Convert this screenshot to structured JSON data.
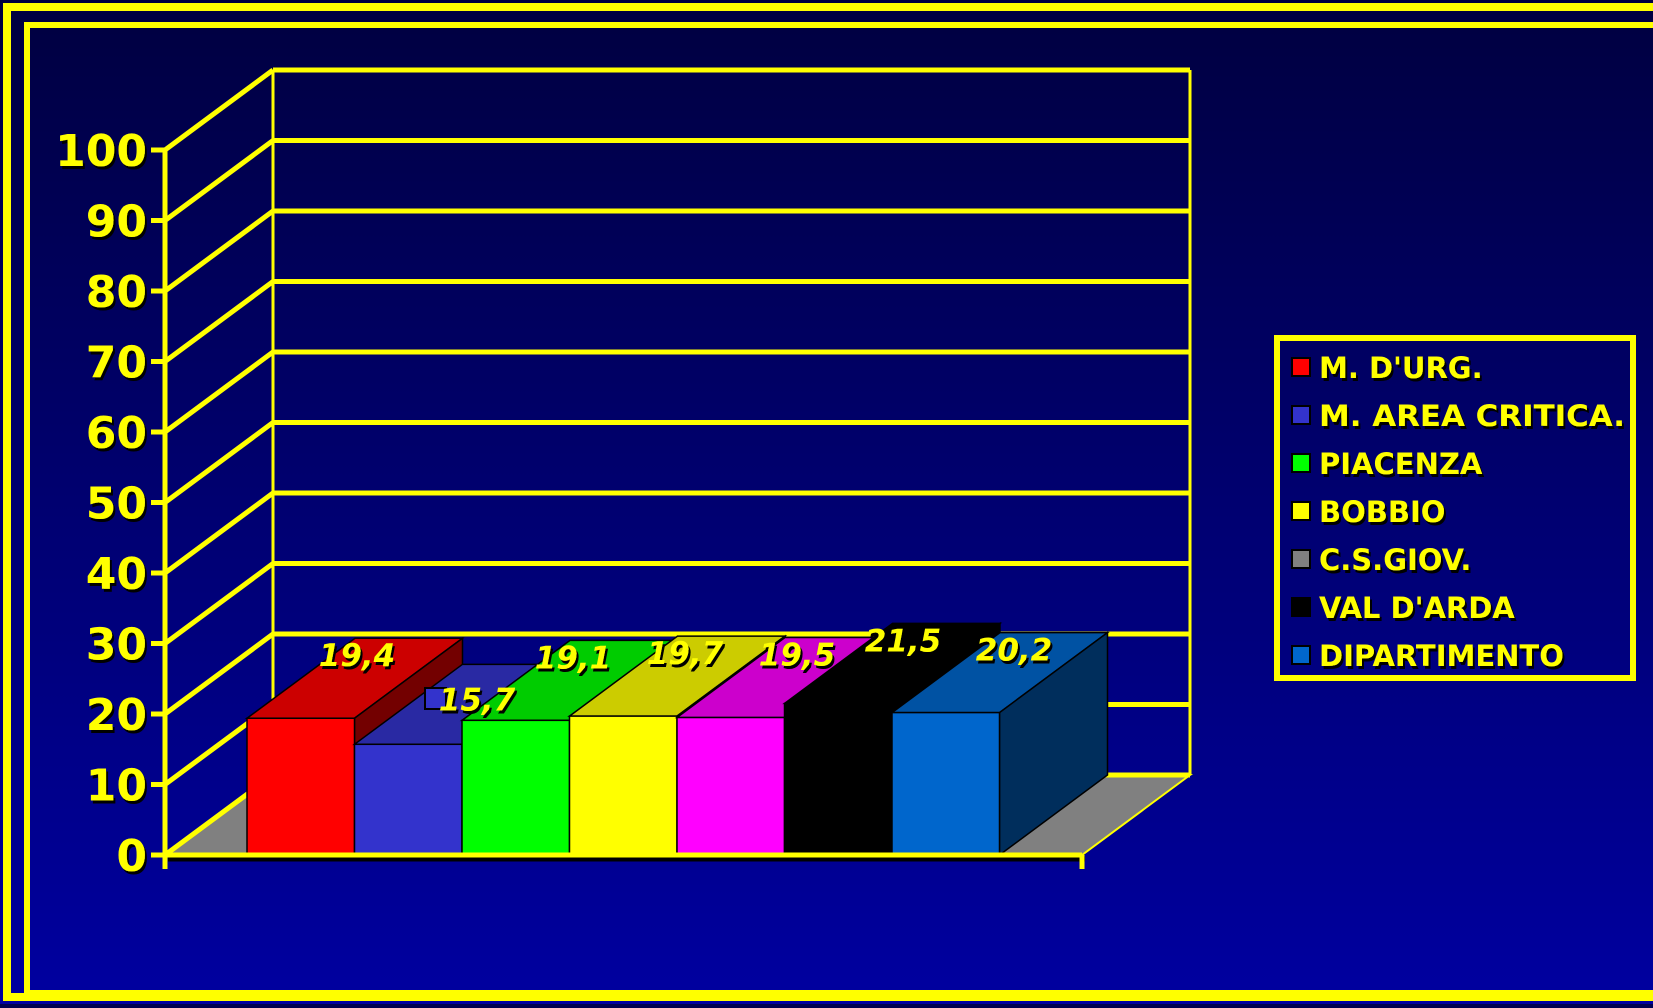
{
  "chart_data": {
    "type": "bar",
    "title": "",
    "xlabel": "",
    "ylabel": "",
    "ylim": [
      0,
      100
    ],
    "yticks": [
      "0",
      "10",
      "20",
      "30",
      "40",
      "50",
      "60",
      "70",
      "80",
      "90",
      "100"
    ],
    "grid": true,
    "three_d": true,
    "legend_position": "right",
    "series": [
      {
        "name": "M. D'URG.",
        "value": 19.4,
        "label": "19,4",
        "color": "#ff0000"
      },
      {
        "name": "M. AREA CRITICA.",
        "value": 15.7,
        "label": "15,7",
        "color": "#3333cc"
      },
      {
        "name": "PIACENZA",
        "value": 19.1,
        "label": "19,1",
        "color": "#00ff00"
      },
      {
        "name": "BOBBIO",
        "value": 19.7,
        "label": "19,7",
        "color": "#ffff00"
      },
      {
        "name": "C.S.GIOV.",
        "value": 19.5,
        "label": "19,5",
        "color": "#ff00ff"
      },
      {
        "name": "VAL D'ARDA",
        "value": 21.5,
        "label": "21,5",
        "color": "#000000"
      },
      {
        "name": "DIPARTIMENTO",
        "value": 20.2,
        "label": "20,2",
        "color": "#0066cc"
      }
    ],
    "legend_swatch_colors": [
      "#ff0000",
      "#3333cc",
      "#00ff00",
      "#ffff00",
      "#808080",
      "#000000",
      "#0066cc"
    ],
    "colors": {
      "background_top": "#000040",
      "background_bottom": "#0000a0",
      "frame": "#ffff00",
      "text": "#ffff00",
      "floor": "#808080"
    }
  }
}
